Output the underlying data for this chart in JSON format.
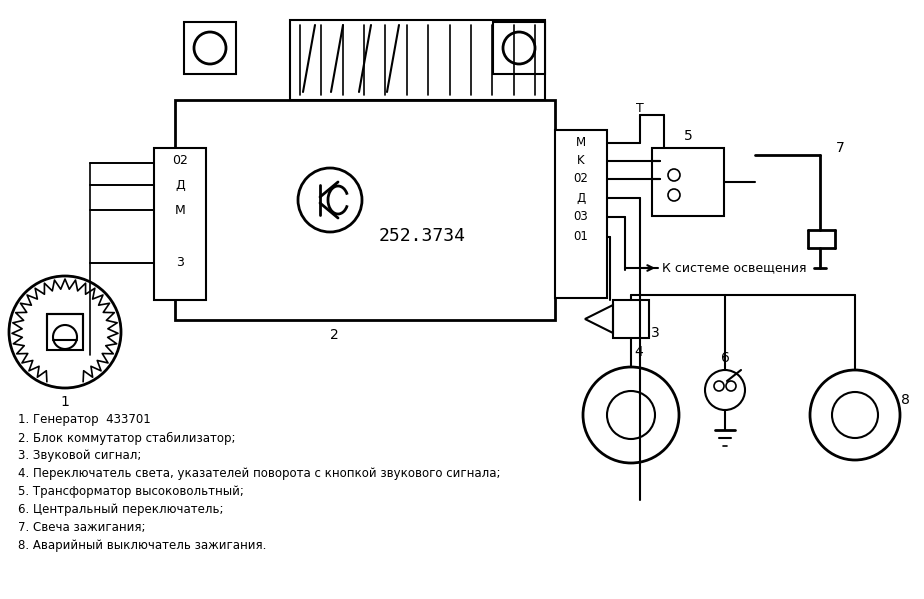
{
  "bg_color": "#ffffff",
  "line_color": "#000000",
  "legend": [
    "1. Генератор  433701",
    "2. Блок коммутатор стабилизатор;",
    "3. Звуковой сигнал;",
    "4. Переключатель света, указателей поворота с кнопкой звукового сигнала;",
    "5. Трансформатор высоковольтный;",
    "6. Центральный переключатель;",
    "7. Свеча зажигания;",
    "8. Аварийный выключатель зажигания."
  ],
  "connector_labels_right": [
    "M",
    "K",
    "02",
    "Д",
    "03",
    "01"
  ],
  "left_labels": [
    "02",
    "Д",
    "M",
    "3"
  ],
  "main_label": "252.3734",
  "lighting_label": "К системе освещения"
}
